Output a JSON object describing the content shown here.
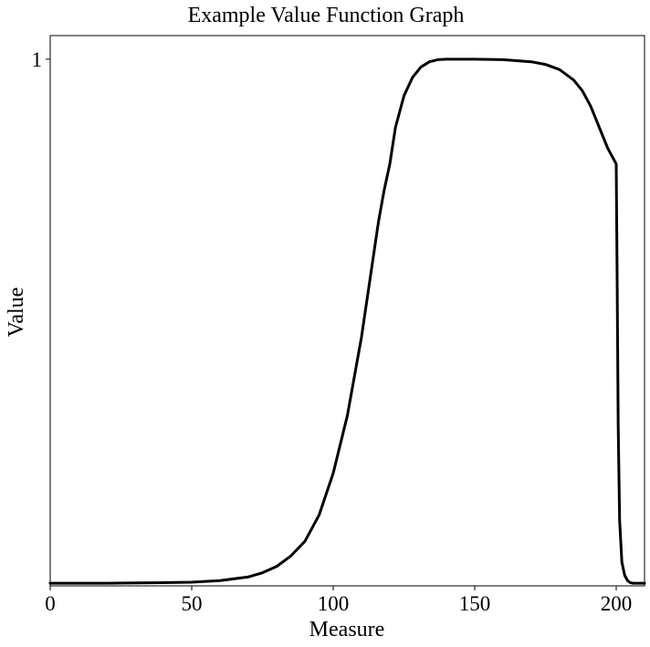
{
  "chart_data": {
    "type": "line",
    "title": "Example Value Function Graph",
    "xlabel": "Measure",
    "ylabel": "Value",
    "xlim": [
      0,
      210
    ],
    "ylim": [
      -0.005,
      1.045
    ],
    "xticks": [
      0,
      50,
      100,
      150,
      200
    ],
    "yticks": [
      1
    ],
    "grid": false,
    "line_color": "#000000",
    "series": [
      {
        "x": [
          0,
          20,
          40,
          50,
          60,
          70,
          75,
          80,
          85,
          90,
          95,
          100,
          105,
          110,
          113,
          116,
          118,
          120,
          122,
          125,
          128,
          131,
          134,
          137,
          140,
          145,
          150,
          160,
          170,
          175,
          180,
          185,
          188,
          191,
          194,
          197,
          199,
          200,
          200.3,
          200.7,
          201.2,
          202,
          203,
          204,
          205,
          206,
          210
        ],
        "y": [
          0,
          0,
          0.001,
          0.002,
          0.005,
          0.012,
          0.02,
          0.032,
          0.052,
          0.08,
          0.13,
          0.21,
          0.32,
          0.47,
          0.58,
          0.69,
          0.75,
          0.8,
          0.87,
          0.93,
          0.965,
          0.985,
          0.995,
          0.999,
          1.0,
          1.0,
          1.0,
          0.999,
          0.995,
          0.99,
          0.98,
          0.96,
          0.94,
          0.91,
          0.87,
          0.83,
          0.81,
          0.8,
          0.6,
          0.3,
          0.12,
          0.04,
          0.015,
          0.005,
          0.001,
          0,
          0
        ]
      }
    ]
  }
}
